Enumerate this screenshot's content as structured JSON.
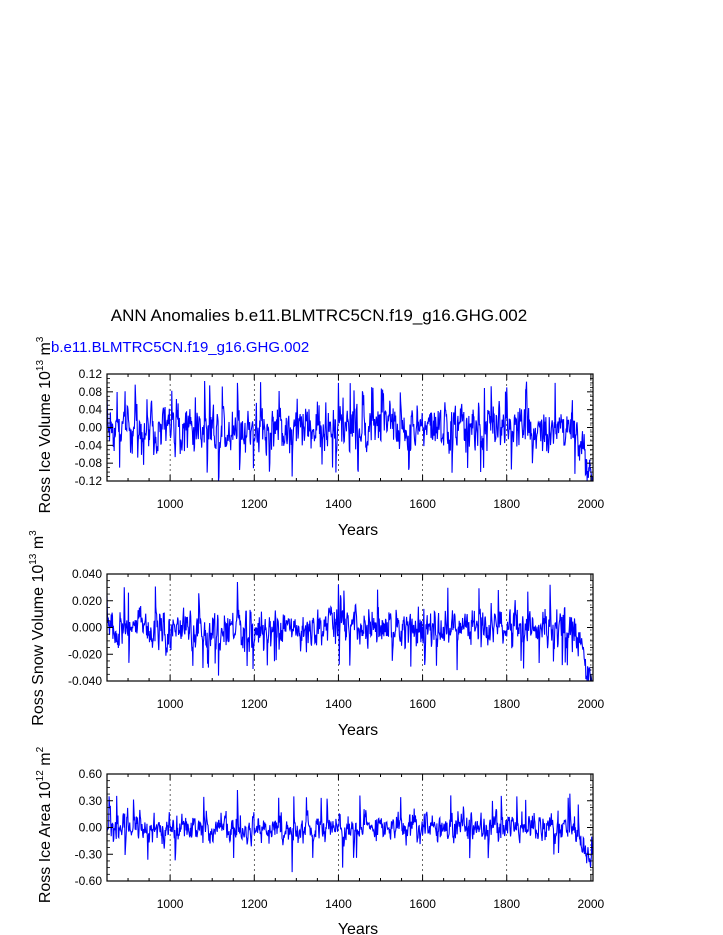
{
  "page_title": "ANN Anomalies b.e11.BLMTRC5CN.f19_g16.GHG.002",
  "legend_label": "b.e11.BLMTRC5CN.f19_g16.GHG.002",
  "colors": {
    "series": "#0000ff",
    "axis": "#000000",
    "grid": "#000000"
  },
  "chart_data": [
    {
      "type": "line",
      "title": "",
      "xlabel": "Years",
      "ylabel": {
        "text": "Ross Ice Volume 10",
        "exp": "13",
        "unit": " m",
        "unit_exp": "3"
      },
      "xlim": [
        850,
        2005
      ],
      "ylim": [
        -0.12,
        0.12
      ],
      "xticks": [
        "1000",
        "1200",
        "1400",
        "1600",
        "1800",
        "2000"
      ],
      "yticks": [
        "-0.12",
        "-0.08",
        "-0.04",
        "0.00",
        "0.04",
        "0.08",
        "0.12"
      ],
      "grid_x": [
        1000,
        1200,
        1400,
        1600,
        1800,
        2000
      ],
      "series": [
        {
          "name": "b.e11.BLMTRC5CN.f19_g16.GHG.002",
          "x_start": 850,
          "x_step": 1,
          "envelope": {
            "amplitude": 0.045,
            "extremes": 0.105,
            "trend_end": -0.08,
            "trend_start_year": 1960
          },
          "keypoints": [
            [
              850,
              0.07
            ],
            [
              880,
              -0.09
            ],
            [
              1115,
              -0.12
            ],
            [
              1160,
              0.1
            ],
            [
              1290,
              -0.11
            ],
            [
              1400,
              0.1
            ],
            [
              1505,
              0.085
            ],
            [
              1800,
              0.09
            ],
            [
              1915,
              0.1
            ],
            [
              2000,
              -0.1
            ]
          ]
        }
      ]
    },
    {
      "type": "line",
      "title": "",
      "xlabel": "Years",
      "ylabel": {
        "text": "Ross Snow Volume 10",
        "exp": "13",
        "unit": " m",
        "unit_exp": "3"
      },
      "xlim": [
        850,
        2005
      ],
      "ylim": [
        -0.04,
        0.04
      ],
      "xticks": [
        "1000",
        "1200",
        "1400",
        "1600",
        "1800",
        "2000"
      ],
      "yticks": [
        "-0.040",
        "-0.020",
        "0.000",
        "0.020",
        "0.040"
      ],
      "grid_x": [
        1000,
        1200,
        1400,
        1600,
        1800,
        2000
      ],
      "series": [
        {
          "name": "b.e11.BLMTRC5CN.f19_g16.GHG.002",
          "x_start": 850,
          "x_step": 1,
          "envelope": {
            "amplitude": 0.012,
            "extremes": 0.032,
            "trend_end": -0.03,
            "trend_start_year": 1960
          },
          "keypoints": [
            [
              850,
              0.024
            ],
            [
              1115,
              -0.036
            ],
            [
              1160,
              0.034
            ],
            [
              1400,
              0.032
            ],
            [
              1605,
              -0.028
            ],
            [
              1780,
              0.028
            ],
            [
              2000,
              -0.035
            ]
          ]
        }
      ]
    },
    {
      "type": "line",
      "title": "",
      "xlabel": "Years",
      "ylabel": {
        "text": "Ross Ice Area 10",
        "exp": "12",
        "unit": " m",
        "unit_exp": "2"
      },
      "xlim": [
        850,
        2005
      ],
      "ylim": [
        -0.6,
        0.6
      ],
      "xticks": [
        "1000",
        "1200",
        "1400",
        "1600",
        "1800",
        "2000"
      ],
      "yticks": [
        "-0.60",
        "-0.30",
        "0.00",
        "0.30",
        "0.60"
      ],
      "grid_x": [
        1000,
        1200,
        1400,
        1600,
        1800,
        2000
      ],
      "series": [
        {
          "name": "b.e11.BLMTRC5CN.f19_g16.GHG.002",
          "x_start": 850,
          "x_step": 1,
          "envelope": {
            "amplitude": 0.13,
            "extremes": 0.38,
            "trend_end": -0.3,
            "trend_start_year": 1960
          },
          "keypoints": [
            [
              855,
              0.35
            ],
            [
              1160,
              0.42
            ],
            [
              1290,
              -0.5
            ],
            [
              1410,
              -0.45
            ],
            [
              1950,
              0.38
            ],
            [
              2000,
              -0.38
            ]
          ]
        }
      ]
    }
  ]
}
